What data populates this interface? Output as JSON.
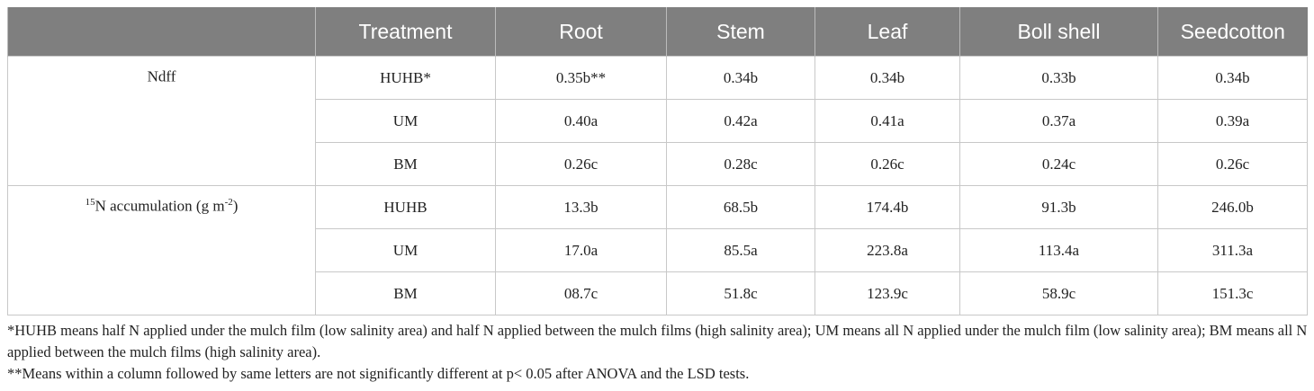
{
  "table": {
    "header": [
      "Treatment",
      "Root",
      "Stem",
      "Leaf",
      "Boll shell",
      "Seedcotton"
    ],
    "groups": [
      {
        "label_parts": [
          "",
          "Ndff",
          "",
          ""
        ],
        "rows": [
          [
            "HUHB*",
            "0.35b**",
            "0.34b",
            "0.34b",
            "0.33b",
            "0.34b"
          ],
          [
            "UM",
            "0.40a",
            "0.42a",
            "0.41a",
            "0.37a",
            "0.39a"
          ],
          [
            "BM",
            "0.26c",
            "0.28c",
            "0.26c",
            "0.24c",
            "0.26c"
          ]
        ]
      },
      {
        "label_parts": [
          "15",
          "N accumulation (g m",
          "-2",
          ")"
        ],
        "rows": [
          [
            "HUHB",
            "13.3b",
            "68.5b",
            "174.4b",
            "91.3b",
            "246.0b"
          ],
          [
            "UM",
            "17.0a",
            "85.5a",
            "223.8a",
            "113.4a",
            "311.3a"
          ],
          [
            "BM",
            "08.7c",
            "51.8c",
            "123.9c",
            "58.9c",
            "151.3c"
          ]
        ]
      }
    ]
  },
  "footnotes": [
    "*HUHB means half N applied under the mulch film (low salinity area) and half N applied between the mulch films (high salinity area); UM means all N applied under the mulch film (low salinity area); BM means all N applied between the mulch films (high salinity area).",
    "**Means within a column followed by same letters are not significantly different at p< 0.05 after ANOVA and the LSD tests."
  ]
}
